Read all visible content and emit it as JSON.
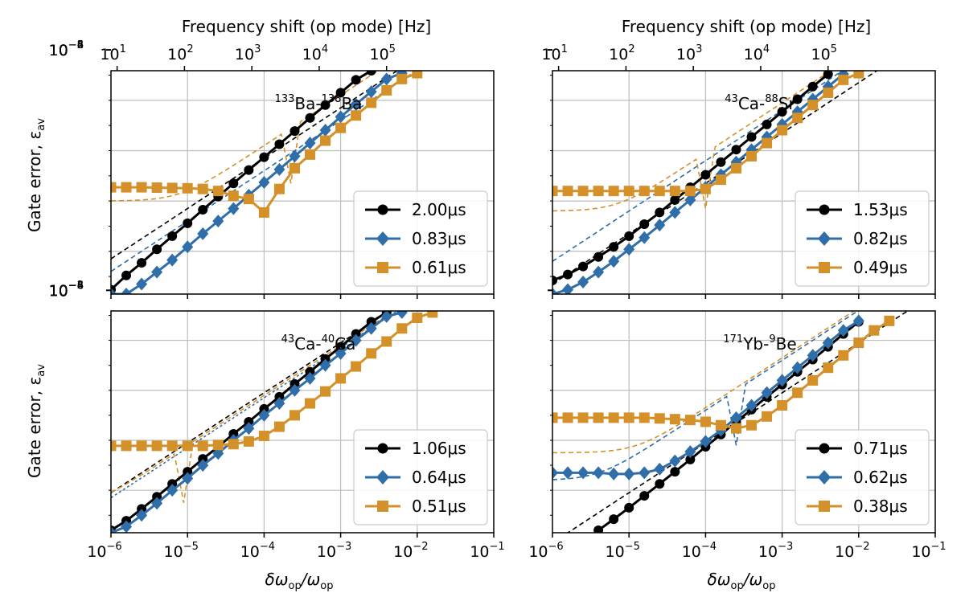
{
  "figure": {
    "x_label_main": "δω",
    "x_label_sub1": "op",
    "x_label_sep": "/ω",
    "x_label_sub2": "op",
    "y_label_main": "Gate error, ε",
    "y_label_sub": "av",
    "top_label": "Frequency shift (op mode) [Hz]"
  },
  "axes_ticks": {
    "x_bottom": [
      {
        "b": "10",
        "e": "−6"
      },
      {
        "b": "10",
        "e": "−5"
      },
      {
        "b": "10",
        "e": "−4"
      },
      {
        "b": "10",
        "e": "−3"
      },
      {
        "b": "10",
        "e": "−2"
      },
      {
        "b": "10",
        "e": "−1"
      }
    ],
    "x_top": [
      {
        "b": "10",
        "e": "1"
      },
      {
        "b": "10",
        "e": "2"
      },
      {
        "b": "10",
        "e": "3"
      },
      {
        "b": "10",
        "e": "4"
      },
      {
        "b": "10",
        "e": "5"
      }
    ],
    "y_left": [
      {
        "b": "10",
        "e": "−2"
      },
      {
        "b": "10",
        "e": "−4"
      },
      {
        "b": "10",
        "e": "−6"
      },
      {
        "b": "10",
        "e": "−8"
      }
    ]
  },
  "colors": {
    "black": "#000000",
    "blue": "#2f6ea8",
    "orange": "#d4912a",
    "grid": "#bdbdbd"
  },
  "chart_data": [
    {
      "type": "line",
      "panel": "top-left",
      "title_parts": [
        {
          "sup": "133"
        },
        {
          "t": "Ba-"
        },
        {
          "sup": "138"
        },
        {
          "t": "Ba"
        }
      ],
      "x_scale": "log",
      "y_scale": "log",
      "xlim": [
        1e-06,
        0.1
      ],
      "ylim": [
        2e-10,
        0.15
      ],
      "top_axis": "log, 10^1 at x≈1.2e-6 to 10^5 at x≈1.2e-2",
      "grid": true,
      "legend_position": "lower-right",
      "series": [
        {
          "name": "2.00μs",
          "color": "black",
          "marker": "circle",
          "x_log_start": -6,
          "x_log_step": 0.2,
          "y": [
            3e-10,
            1.1e-09,
            3.5e-09,
            1.2e-08,
            4e-08,
            1.3e-07,
            4.5e-07,
            1.5e-06,
            5e-06,
            1.7e-05,
            5.5e-05,
            0.00018,
            0.0006,
            0.002,
            0.0065,
            0.02,
            0.065,
            0.15
          ]
        },
        {
          "name": "0.83μs",
          "color": "blue",
          "marker": "diamond",
          "x_log_start": -6,
          "x_log_step": 0.2,
          "y": [
            2e-10,
            2e-10,
            5e-10,
            1.5e-09,
            4.5e-09,
            1.5e-08,
            5e-08,
            1.6e-07,
            5e-07,
            1.7e-06,
            5.5e-06,
            1.8e-05,
            6e-05,
            0.0002,
            0.00065,
            0.0022,
            0.007,
            0.022,
            0.07,
            0.12
          ]
        },
        {
          "name": "0.61μs",
          "color": "orange",
          "marker": "square",
          "x_log_start": -6,
          "x_log_step": 0.2,
          "y": [
            3.5e-06,
            3.5e-06,
            3.5e-06,
            3.4e-06,
            3.3e-06,
            3.2e-06,
            3e-06,
            2.5e-06,
            1.6e-06,
            1.2e-06,
            3.5e-07,
            3e-06,
            2e-05,
            7e-05,
            0.00025,
            0.0008,
            0.0025,
            0.008,
            0.025,
            0.07,
            0.12
          ]
        }
      ],
      "legend": [
        {
          "label": "2.00μs",
          "color": "black",
          "marker": "circle"
        },
        {
          "label": "0.83μs",
          "color": "blue",
          "marker": "diamond"
        },
        {
          "label": "0.61μs",
          "color": "orange",
          "marker": "square"
        }
      ]
    },
    {
      "type": "line",
      "panel": "top-right",
      "title_parts": [
        {
          "sup": "43"
        },
        {
          "t": "Ca-"
        },
        {
          "sup": "88"
        },
        {
          "t": "Sr"
        }
      ],
      "x_scale": "log",
      "y_scale": "log",
      "xlim": [
        1e-06,
        0.1
      ],
      "ylim": [
        2e-10,
        0.15
      ],
      "grid": true,
      "legend_position": "lower-right",
      "series": [
        {
          "name": "1.53μs",
          "color": "black",
          "marker": "circle",
          "x_log_start": -6,
          "x_log_step": 0.2,
          "y": [
            7e-10,
            1.2e-09,
            2.5e-09,
            6e-09,
            1.5e-08,
            4e-08,
            1.2e-07,
            3.5e-07,
            1.1e-06,
            3.5e-06,
            1.1e-05,
            3.5e-05,
            0.00011,
            0.00035,
            0.0011,
            0.0035,
            0.011,
            0.035,
            0.11
          ]
        },
        {
          "name": "0.82μs",
          "color": "blue",
          "marker": "diamond",
          "x_log_start": -6,
          "x_log_step": 0.2,
          "y": [
            2e-10,
            3e-10,
            6e-10,
            1.5e-09,
            4e-09,
            1.2e-08,
            3.5e-08,
            1.1e-07,
            3.5e-07,
            1.1e-06,
            3.5e-06,
            1.1e-05,
            3.5e-05,
            0.00011,
            0.00035,
            0.0011,
            0.0035,
            0.011,
            0.035,
            0.11
          ]
        },
        {
          "name": "0.49μs",
          "color": "orange",
          "marker": "square",
          "x_log_start": -6,
          "x_log_step": 0.2,
          "y": [
            2.5e-06,
            2.5e-06,
            2.5e-06,
            2.5e-06,
            2.5e-06,
            2.5e-06,
            2.5e-06,
            2.5e-06,
            2.5e-06,
            2.5e-06,
            3e-06,
            7e-06,
            2e-05,
            6e-05,
            0.0002,
            0.00065,
            0.002,
            0.0065,
            0.02,
            0.065,
            0.12
          ]
        }
      ],
      "legend": [
        {
          "label": "1.53μs",
          "color": "black",
          "marker": "circle"
        },
        {
          "label": "0.82μs",
          "color": "blue",
          "marker": "diamond"
        },
        {
          "label": "0.49μs",
          "color": "orange",
          "marker": "square"
        }
      ]
    },
    {
      "type": "line",
      "panel": "bottom-left",
      "title_parts": [
        {
          "sup": "43"
        },
        {
          "t": "Ca-"
        },
        {
          "sup": "40"
        },
        {
          "t": "Ca"
        }
      ],
      "x_scale": "log",
      "y_scale": "log",
      "xlim": [
        1e-06,
        0.1
      ],
      "ylim": [
        2e-10,
        0.15
      ],
      "grid": true,
      "legend_position": "lower-right",
      "series": [
        {
          "name": "1.06μs",
          "color": "black",
          "marker": "circle",
          "x_log_start": -6,
          "x_log_step": 0.2,
          "y": [
            2.5e-10,
            6e-10,
            1.8e-09,
            5.5e-09,
            1.8e-08,
            5.5e-08,
            1.8e-07,
            5.5e-07,
            1.8e-06,
            5.5e-06,
            1.8e-05,
            5.5e-05,
            0.00018,
            0.00055,
            0.0018,
            0.0055,
            0.018,
            0.055,
            0.13
          ]
        },
        {
          "name": "0.64μs",
          "color": "blue",
          "marker": "diamond",
          "x_log_start": -6,
          "x_log_step": 0.2,
          "y": [
            2e-10,
            3.5e-10,
            1e-09,
            3e-09,
            1e-08,
            3e-08,
            1e-07,
            3e-07,
            1e-06,
            3e-06,
            1e-05,
            3e-05,
            0.0001,
            0.0003,
            0.001,
            0.003,
            0.01,
            0.03,
            0.09,
            0.13
          ]
        },
        {
          "name": "0.51μs",
          "color": "orange",
          "marker": "square",
          "x_log_start": -6,
          "x_log_step": 0.2,
          "y": [
            6e-07,
            6e-07,
            6e-07,
            6e-07,
            6e-07,
            6e-07,
            6e-07,
            6.5e-07,
            7e-07,
            9e-07,
            1.5e-06,
            3.5e-06,
            1e-05,
            3e-05,
            9e-05,
            0.0003,
            0.0009,
            0.003,
            0.009,
            0.03,
            0.08,
            0.13
          ]
        }
      ],
      "legend": [
        {
          "label": "1.06μs",
          "color": "black",
          "marker": "circle"
        },
        {
          "label": "0.64μs",
          "color": "blue",
          "marker": "diamond"
        },
        {
          "label": "0.51μs",
          "color": "orange",
          "marker": "square"
        }
      ]
    },
    {
      "type": "line",
      "panel": "bottom-right",
      "title_parts": [
        {
          "sup": "171"
        },
        {
          "t": "Yb-"
        },
        {
          "sup": "9"
        },
        {
          "t": "Be"
        }
      ],
      "x_scale": "log",
      "y_scale": "log",
      "xlim": [
        1e-06,
        0.1
      ],
      "ylim": [
        2e-10,
        0.15
      ],
      "grid": true,
      "legend_position": "lower-right",
      "series": [
        {
          "name": "0.71μs",
          "color": "black",
          "marker": "circle",
          "x_log_start": -5.4,
          "x_log_step": 0.2,
          "y": [
            2.5e-10,
            7e-10,
            2e-09,
            6e-09,
            1.8e-08,
            5.5e-08,
            1.7e-07,
            5.5e-07,
            1.7e-06,
            5.5e-06,
            1.7e-05,
            5.5e-05,
            0.00017,
            0.00055,
            0.0017,
            0.0055,
            0.018,
            0.055
          ]
        },
        {
          "name": "0.62μs",
          "color": "blue",
          "marker": "diamond",
          "x_log_start": -6,
          "x_log_step": 0.2,
          "y": [
            5e-08,
            5e-08,
            5e-08,
            5e-08,
            4.5e-08,
            4.5e-08,
            5e-08,
            7e-08,
            1.5e-07,
            3.5e-07,
            9e-07,
            2.5e-06,
            8e-06,
            2.5e-05,
            8e-05,
            0.00025,
            0.0008,
            0.0025,
            0.008,
            0.025,
            0.06
          ]
        },
        {
          "name": "0.38μs",
          "color": "orange",
          "marker": "square",
          "x_log_start": -6,
          "x_log_step": 0.2,
          "y": [
            8e-06,
            8e-06,
            8e-06,
            8e-06,
            8e-06,
            8e-06,
            8e-06,
            7.5e-06,
            7e-06,
            6.5e-06,
            5.5e-06,
            4e-06,
            3e-06,
            4e-06,
            9e-06,
            2.5e-05,
            8e-05,
            0.00025,
            0.0008,
            0.0025,
            0.008,
            0.025,
            0.06
          ]
        }
      ],
      "legend": [
        {
          "label": "0.71μs",
          "color": "black",
          "marker": "circle"
        },
        {
          "label": "0.62μs",
          "color": "blue",
          "marker": "diamond"
        },
        {
          "label": "0.38μs",
          "color": "orange",
          "marker": "square"
        }
      ]
    }
  ]
}
